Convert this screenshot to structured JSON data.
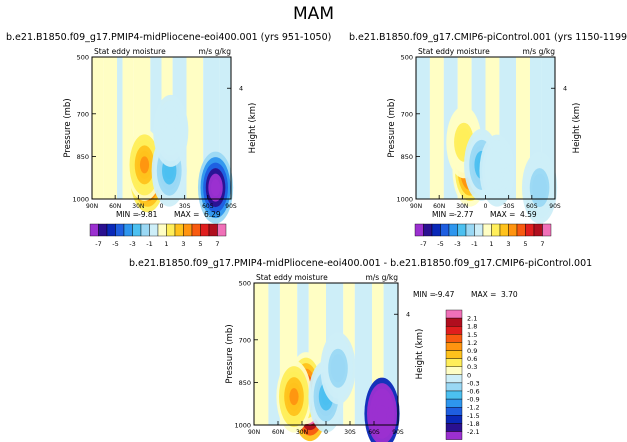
{
  "page_title": "MAM",
  "chart_data": [
    {
      "type": "heatmap",
      "title": "b.e21.B1850.f09_g17.PMIP4-midPliocene-eoi400.001 (yrs 951-1050)",
      "left_subtitle": "Stat eddy moisture",
      "right_subtitle": "m/s g/kg",
      "xlabel": "",
      "ylabel": "Pressure (mb)",
      "ylabel_right": "Height (km)",
      "x_ticks": [
        "90N",
        "60N",
        "30N",
        "0",
        "30S",
        "60S",
        "90S"
      ],
      "y_ticks": [
        "500",
        "700",
        "850",
        "1000"
      ],
      "y_right_ticks": [
        "4"
      ],
      "min_label": "MIN =",
      "min_value": "-9.81",
      "max_label": "MAX =",
      "max_value": "6.29",
      "features": [
        {
          "lat": 18,
          "p": 920,
          "value": 6.29
        },
        {
          "lat": 22,
          "p": 880,
          "value": 3
        },
        {
          "lat": -10,
          "p": 900,
          "value": -3
        },
        {
          "lat": -12,
          "p": 760,
          "value": -1
        },
        {
          "lat": -70,
          "p": 960,
          "value": -9.81
        }
      ]
    },
    {
      "type": "heatmap",
      "title": "b.e21.B1850.f09_g17.CMIP6-piControl.001 (yrs 1150-1199)",
      "left_subtitle": "Stat eddy moisture",
      "right_subtitle": "m/s g/kg",
      "xlabel": "",
      "ylabel": "Pressure (mb)",
      "ylabel_right": "Height (km)",
      "x_ticks": [
        "90N",
        "60N",
        "30N",
        "0",
        "30S",
        "60S",
        "90S"
      ],
      "y_ticks": [
        "500",
        "700",
        "850",
        "1000"
      ],
      "y_right_ticks": [
        "4"
      ],
      "min_label": "MIN =",
      "min_value": "-2.77",
      "max_label": "MAX =",
      "max_value": "4.59",
      "features": [
        {
          "lat": 20,
          "p": 900,
          "value": 4.59
        },
        {
          "lat": 28,
          "p": 800,
          "value": 1.5
        },
        {
          "lat": 5,
          "p": 880,
          "value": -2.77
        },
        {
          "lat": -15,
          "p": 900,
          "value": -1
        },
        {
          "lat": -70,
          "p": 960,
          "value": -2
        }
      ]
    },
    {
      "type": "heatmap",
      "title": "b.e21.B1850.f09_g17.PMIP4-midPliocene-eoi400.001 - b.e21.B1850.f09_g17.CMIP6-piControl.001",
      "left_subtitle": "Stat eddy moisture",
      "right_subtitle": "m/s g/kg",
      "xlabel": "",
      "ylabel": "Pressure (mb)",
      "ylabel_right": "Height (km)",
      "x_ticks": [
        "90N",
        "60N",
        "30N",
        "0",
        "30S",
        "60S",
        "90S"
      ],
      "y_ticks": [
        "500",
        "700",
        "850",
        "1000"
      ],
      "y_right_ticks": [
        "4"
      ],
      "min_label": "MIN =",
      "min_value": "-9.47",
      "max_label": "MAX =",
      "max_value": "3.70",
      "features": [
        {
          "lat": 20,
          "p": 930,
          "value": 3.7
        },
        {
          "lat": 25,
          "p": 870,
          "value": 1.5
        },
        {
          "lat": 40,
          "p": 900,
          "value": 0.9
        },
        {
          "lat": 0,
          "p": 900,
          "value": -0.9
        },
        {
          "lat": -15,
          "p": 800,
          "value": -0.6
        },
        {
          "lat": -70,
          "p": 960,
          "value": -9.47
        }
      ]
    }
  ],
  "colorbar_horizontal": {
    "labels": [
      "-7",
      "-5",
      "-3",
      "-1",
      "1",
      "3",
      "5",
      "7"
    ],
    "colors": [
      "#9b30d0",
      "#2a1090",
      "#0a28b8",
      "#1e5ee0",
      "#2e96ee",
      "#4cc0f0",
      "#9ad8f4",
      "#cdeef8",
      "#fffec4",
      "#ffee5a",
      "#ffc21c",
      "#ff9410",
      "#f85a10",
      "#e01e1e",
      "#b00e1e",
      "#f070b8"
    ]
  },
  "colorbar_vertical": {
    "labels": [
      "2.1",
      "1.8",
      "1.5",
      "1.2",
      "0.9",
      "0.6",
      "0.3",
      "0",
      "-0.3",
      "-0.6",
      "-0.9",
      "-1.2",
      "-1.5",
      "-1.8",
      "-2.1"
    ],
    "colors": [
      "#f070b8",
      "#b00e1e",
      "#e01e1e",
      "#f85a10",
      "#ff9410",
      "#ffc21c",
      "#ffee5a",
      "#fffec4",
      "#cdeef8",
      "#9ad8f4",
      "#4cc0f0",
      "#2e96ee",
      "#1e5ee0",
      "#0a28b8",
      "#2a1090",
      "#9b30d0"
    ]
  }
}
